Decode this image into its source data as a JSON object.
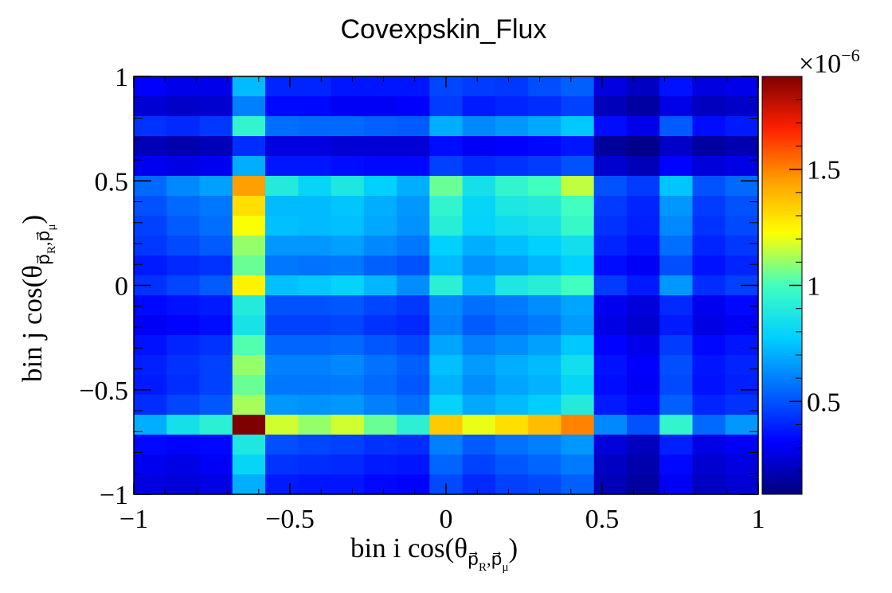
{
  "chart_data": {
    "type": "heatmap",
    "title": "Covexpskin_Flux",
    "xlabel": {
      "main": "bin i cos(θ",
      "sub": "p⃗",
      "subsub1": "R",
      "sep": ",",
      "sub2": "p⃗",
      "subsub2": "μ",
      "close": ")"
    },
    "ylabel": {
      "main": "bin j cos(θ",
      "sub": "p⃗",
      "subsub1": "R",
      "sep": ",",
      "sub2": "p⃗",
      "subsub2": "μ",
      "close": ")"
    },
    "xlim": [
      -1,
      1
    ],
    "ylim": [
      -1,
      1
    ],
    "x_ticks": [
      {
        "value": -1,
        "label": "−1"
      },
      {
        "value": -0.5,
        "label": "−0.5"
      },
      {
        "value": 0,
        "label": "0"
      },
      {
        "value": 0.5,
        "label": "0.5"
      },
      {
        "value": 1,
        "label": "1"
      }
    ],
    "y_ticks": [
      {
        "value": -1,
        "label": "−1"
      },
      {
        "value": -0.5,
        "label": "−0.5"
      },
      {
        "value": 0,
        "label": "0"
      },
      {
        "value": 0.5,
        "label": "0.5"
      },
      {
        "value": 1,
        "label": "1"
      }
    ],
    "colorbar": {
      "min": 0.1,
      "max": 1.9,
      "multiplier": "×10",
      "exponent": "−6",
      "ticks": [
        {
          "value": 0.5,
          "label": "0.5"
        },
        {
          "value": 1.0,
          "label": "1"
        },
        {
          "value": 1.5,
          "label": "1.5"
        }
      ]
    },
    "units": "×1e-6",
    "rows_top_to_bottom": [
      [
        0.32,
        0.29,
        0.29,
        0.73,
        0.4,
        0.4,
        0.37,
        0.37,
        0.37,
        0.47,
        0.45,
        0.44,
        0.49,
        0.53,
        0.27,
        0.22,
        0.36,
        0.27,
        0.29
      ],
      [
        0.25,
        0.23,
        0.24,
        0.6,
        0.34,
        0.34,
        0.31,
        0.31,
        0.32,
        0.45,
        0.38,
        0.4,
        0.42,
        0.46,
        0.2,
        0.16,
        0.28,
        0.21,
        0.23
      ],
      [
        0.43,
        0.41,
        0.44,
        0.95,
        0.56,
        0.55,
        0.55,
        0.53,
        0.52,
        0.7,
        0.62,
        0.65,
        0.69,
        0.76,
        0.35,
        0.29,
        0.52,
        0.35,
        0.38
      ],
      [
        0.2,
        0.18,
        0.2,
        0.42,
        0.27,
        0.27,
        0.25,
        0.25,
        0.25,
        0.35,
        0.31,
        0.32,
        0.34,
        0.37,
        0.15,
        0.12,
        0.23,
        0.16,
        0.19
      ],
      [
        0.3,
        0.28,
        0.3,
        0.7,
        0.37,
        0.37,
        0.35,
        0.34,
        0.34,
        0.46,
        0.41,
        0.43,
        0.45,
        0.5,
        0.24,
        0.2,
        0.33,
        0.26,
        0.28
      ],
      [
        0.55,
        0.62,
        0.67,
        1.45,
        0.9,
        0.8,
        0.88,
        0.78,
        0.7,
        1.05,
        0.85,
        0.95,
        1.0,
        1.15,
        0.5,
        0.45,
        0.75,
        0.5,
        0.55
      ],
      [
        0.5,
        0.55,
        0.58,
        1.3,
        0.73,
        0.73,
        0.75,
        0.7,
        0.65,
        0.95,
        0.8,
        0.88,
        0.9,
        1.0,
        0.45,
        0.4,
        0.65,
        0.45,
        0.5
      ],
      [
        0.46,
        0.52,
        0.56,
        1.22,
        0.74,
        0.73,
        0.74,
        0.69,
        0.64,
        0.92,
        0.79,
        0.83,
        0.86,
        0.97,
        0.43,
        0.39,
        0.62,
        0.43,
        0.48
      ],
      [
        0.44,
        0.48,
        0.52,
        1.1,
        0.65,
        0.65,
        0.67,
        0.62,
        0.58,
        0.78,
        0.7,
        0.74,
        0.78,
        0.84,
        0.4,
        0.36,
        0.56,
        0.4,
        0.44
      ],
      [
        0.38,
        0.41,
        0.43,
        1.05,
        0.58,
        0.57,
        0.58,
        0.53,
        0.5,
        0.73,
        0.64,
        0.67,
        0.72,
        0.78,
        0.35,
        0.31,
        0.49,
        0.36,
        0.4
      ],
      [
        0.43,
        0.47,
        0.52,
        1.25,
        0.74,
        0.76,
        0.79,
        0.72,
        0.63,
        0.93,
        0.73,
        0.88,
        0.92,
        1.0,
        0.45,
        0.38,
        0.65,
        0.42,
        0.46
      ],
      [
        0.34,
        0.36,
        0.38,
        0.9,
        0.5,
        0.5,
        0.51,
        0.47,
        0.44,
        0.62,
        0.56,
        0.59,
        0.63,
        0.68,
        0.3,
        0.26,
        0.41,
        0.3,
        0.34
      ],
      [
        0.31,
        0.33,
        0.35,
        0.86,
        0.46,
        0.46,
        0.47,
        0.43,
        0.41,
        0.6,
        0.52,
        0.56,
        0.59,
        0.66,
        0.28,
        0.24,
        0.38,
        0.28,
        0.31
      ],
      [
        0.36,
        0.4,
        0.43,
        1.02,
        0.54,
        0.54,
        0.55,
        0.51,
        0.47,
        0.68,
        0.6,
        0.63,
        0.67,
        0.76,
        0.33,
        0.29,
        0.45,
        0.34,
        0.37
      ],
      [
        0.39,
        0.43,
        0.46,
        1.1,
        0.6,
        0.6,
        0.62,
        0.57,
        0.53,
        0.74,
        0.66,
        0.7,
        0.73,
        0.84,
        0.36,
        0.32,
        0.49,
        0.37,
        0.4
      ],
      [
        0.38,
        0.42,
        0.46,
        1.05,
        0.58,
        0.58,
        0.59,
        0.55,
        0.51,
        0.71,
        0.63,
        0.68,
        0.71,
        0.8,
        0.35,
        0.31,
        0.48,
        0.36,
        0.39
      ],
      [
        0.42,
        0.47,
        0.51,
        1.12,
        0.65,
        0.64,
        0.65,
        0.6,
        0.56,
        0.79,
        0.69,
        0.73,
        0.77,
        0.9,
        0.38,
        0.34,
        0.53,
        0.4,
        0.43
      ],
      [
        0.7,
        0.85,
        0.93,
        1.9,
        1.17,
        1.1,
        1.17,
        1.05,
        0.93,
        1.35,
        1.2,
        1.3,
        1.38,
        1.5,
        0.62,
        0.5,
        0.95,
        0.55,
        0.65
      ],
      [
        0.34,
        0.33,
        0.34,
        0.88,
        0.49,
        0.47,
        0.46,
        0.43,
        0.42,
        0.6,
        0.52,
        0.57,
        0.6,
        0.65,
        0.26,
        0.21,
        0.39,
        0.28,
        0.31
      ],
      [
        0.3,
        0.28,
        0.31,
        0.8,
        0.43,
        0.42,
        0.41,
        0.38,
        0.37,
        0.54,
        0.46,
        0.51,
        0.54,
        0.59,
        0.22,
        0.18,
        0.34,
        0.24,
        0.27
      ],
      [
        0.27,
        0.26,
        0.28,
        0.7,
        0.38,
        0.37,
        0.37,
        0.34,
        0.33,
        0.48,
        0.41,
        0.46,
        0.48,
        0.53,
        0.2,
        0.16,
        0.31,
        0.22,
        0.25
      ]
    ]
  }
}
